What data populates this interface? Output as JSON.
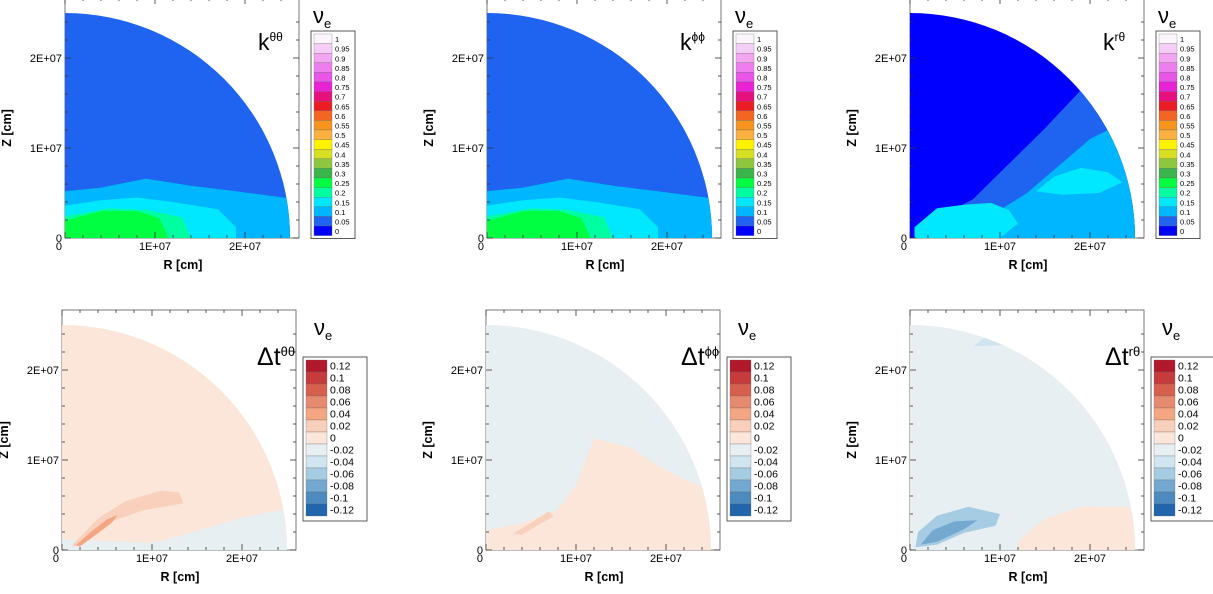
{
  "chart_data": [
    {
      "type": "heatmap",
      "quantity": "k",
      "superscript": "θθ",
      "particle_main": "ν",
      "particle_sub": "e",
      "xlabel": "R [cm]",
      "ylabel": "Z [cm]",
      "x_ticks": [
        "0",
        "1E+07",
        "2E+07"
      ],
      "y_ticks": [
        "0",
        "1E+07",
        "2E+07"
      ],
      "x_tick_values": [
        0,
        10000000,
        20000000
      ],
      "y_tick_values": [
        0,
        10000000,
        20000000
      ],
      "xlim": [
        0,
        26000000
      ],
      "ylim": [
        0,
        26000000
      ],
      "domain_radius": 25000000,
      "colorbar_levels": [
        "1",
        "0.95",
        "0.9",
        "0.85",
        "0.8",
        "0.75",
        "0.7",
        "0.65",
        "0.6",
        "0.55",
        "0.5",
        "0.45",
        "0.4",
        "0.35",
        "0.3",
        "0.25",
        "0.2",
        "0.15",
        "0.1",
        "0.05",
        "0"
      ],
      "colorbar_colors": [
        "#fdf5fd",
        "#f6cdf6",
        "#f2a6f2",
        "#ee7eee",
        "#ea55ea",
        "#ea22d6",
        "#e8107e",
        "#ed1c24",
        "#f26522",
        "#f7941d",
        "#fbb040",
        "#fff200",
        "#d7df23",
        "#8dc63f",
        "#39b54a",
        "#00ff40",
        "#00ffa0",
        "#00e8ff",
        "#00b6ff",
        "#1e64f0",
        "#0000ff"
      ],
      "regions": [
        {
          "level": "0.05",
          "color": "#1e64f0"
        },
        {
          "level": "0.1",
          "color": "#00b6ff"
        },
        {
          "level": "0.15",
          "color": "#00e8ff"
        },
        {
          "level": "0.2",
          "color": "#00ffa0"
        },
        {
          "level": "0.25",
          "color": "#00ff40"
        }
      ]
    },
    {
      "type": "heatmap",
      "quantity": "k",
      "superscript": "ϕϕ",
      "particle_main": "ν",
      "particle_sub": "e",
      "xlabel": "R [cm]",
      "ylabel": "Z [cm]",
      "x_ticks": [
        "0",
        "1E+07",
        "2E+07"
      ],
      "y_ticks": [
        "0",
        "1E+07",
        "2E+07"
      ],
      "x_tick_values": [
        0,
        10000000,
        20000000
      ],
      "y_tick_values": [
        0,
        10000000,
        20000000
      ],
      "xlim": [
        0,
        26000000
      ],
      "ylim": [
        0,
        26000000
      ],
      "domain_radius": 25000000,
      "colorbar_levels": [
        "1",
        "0.95",
        "0.9",
        "0.85",
        "0.8",
        "0.75",
        "0.7",
        "0.65",
        "0.6",
        "0.55",
        "0.5",
        "0.45",
        "0.4",
        "0.35",
        "0.3",
        "0.25",
        "0.2",
        "0.15",
        "0.1",
        "0.05",
        "0"
      ],
      "colorbar_colors": [
        "#fdf5fd",
        "#f6cdf6",
        "#f2a6f2",
        "#ee7eee",
        "#ea55ea",
        "#ea22d6",
        "#e8107e",
        "#ed1c24",
        "#f26522",
        "#f7941d",
        "#fbb040",
        "#fff200",
        "#d7df23",
        "#8dc63f",
        "#39b54a",
        "#00ff40",
        "#00ffa0",
        "#00e8ff",
        "#00b6ff",
        "#1e64f0",
        "#0000ff"
      ],
      "regions": [
        {
          "level": "0.05",
          "color": "#1e64f0"
        },
        {
          "level": "0.1",
          "color": "#00b6ff"
        },
        {
          "level": "0.15",
          "color": "#00e8ff"
        },
        {
          "level": "0.2",
          "color": "#00ffa0"
        },
        {
          "level": "0.25",
          "color": "#00ff40"
        }
      ]
    },
    {
      "type": "heatmap",
      "quantity": "k",
      "superscript": "rθ",
      "particle_main": "ν",
      "particle_sub": "e",
      "xlabel": "R [cm]",
      "ylabel": "Z [cm]",
      "x_ticks": [
        "0",
        "1E+07",
        "2E+07"
      ],
      "y_ticks": [
        "0",
        "1E+07",
        "2E+07"
      ],
      "x_tick_values": [
        0,
        10000000,
        20000000
      ],
      "y_tick_values": [
        0,
        10000000,
        20000000
      ],
      "xlim": [
        0,
        26000000
      ],
      "ylim": [
        0,
        26000000
      ],
      "domain_radius": 25000000,
      "colorbar_levels": [
        "1",
        "0.95",
        "0.9",
        "0.85",
        "0.8",
        "0.75",
        "0.7",
        "0.65",
        "0.6",
        "0.55",
        "0.5",
        "0.45",
        "0.4",
        "0.35",
        "0.3",
        "0.25",
        "0.2",
        "0.15",
        "0.1",
        "0.05",
        "0"
      ],
      "colorbar_colors": [
        "#fdf5fd",
        "#f6cdf6",
        "#f2a6f2",
        "#ee7eee",
        "#ea55ea",
        "#ea22d6",
        "#e8107e",
        "#ed1c24",
        "#f26522",
        "#f7941d",
        "#fbb040",
        "#fff200",
        "#d7df23",
        "#8dc63f",
        "#39b54a",
        "#00ff40",
        "#00ffa0",
        "#00e8ff",
        "#00b6ff",
        "#1e64f0",
        "#0000ff"
      ],
      "regions": [
        {
          "level": "0",
          "color": "#0000ff"
        },
        {
          "level": "0.05",
          "color": "#1e64f0"
        },
        {
          "level": "0.1",
          "color": "#00b6ff"
        },
        {
          "level": "0.15",
          "color": "#00e8ff"
        }
      ]
    },
    {
      "type": "heatmap",
      "quantity": "Δt",
      "superscript": "θθ",
      "particle_main": "ν",
      "particle_sub": "e",
      "xlabel": "R [cm]",
      "ylabel": "Z [cm]",
      "x_ticks": [
        "0",
        "1E+07",
        "2E+07"
      ],
      "y_ticks": [
        "0",
        "1E+07",
        "2E+07"
      ],
      "x_tick_values": [
        0,
        10000000,
        20000000
      ],
      "y_tick_values": [
        0,
        10000000,
        20000000
      ],
      "xlim": [
        0,
        26000000
      ],
      "ylim": [
        0,
        26000000
      ],
      "domain_radius": 25000000,
      "colorbar_levels": [
        "0.12",
        "0.1",
        "0.08",
        "0.06",
        "0.04",
        "0.02",
        "0",
        "-0.02",
        "-0.04",
        "-0.06",
        "-0.08",
        "-0.1",
        "-0.12"
      ],
      "colorbar_colors": [
        "#b2182b",
        "#c73b3a",
        "#d6604d",
        "#e58a6f",
        "#f4a582",
        "#f9d0bb",
        "#fbe6d9",
        "#e8eff2",
        "#d1e5f0",
        "#a5cce3",
        "#74a9cf",
        "#4b8bbf",
        "#2166ac"
      ],
      "regions": [
        {
          "level": "0",
          "color": "#fbe6d9"
        },
        {
          "level": "-0.02",
          "color": "#e8eff2"
        },
        {
          "level": "0.02",
          "color": "#f9d0bb"
        },
        {
          "level": "0.04",
          "color": "#f4a582"
        }
      ]
    },
    {
      "type": "heatmap",
      "quantity": "Δt",
      "superscript": "ϕϕ",
      "particle_main": "ν",
      "particle_sub": "e",
      "xlabel": "R [cm]",
      "ylabel": "Z [cm]",
      "x_ticks": [
        "0",
        "1E+07",
        "2E+07"
      ],
      "y_ticks": [
        "0",
        "1E+07",
        "2E+07"
      ],
      "x_tick_values": [
        0,
        10000000,
        20000000
      ],
      "y_tick_values": [
        0,
        10000000,
        20000000
      ],
      "xlim": [
        0,
        26000000
      ],
      "ylim": [
        0,
        26000000
      ],
      "domain_radius": 25000000,
      "colorbar_levels": [
        "0.12",
        "0.1",
        "0.08",
        "0.06",
        "0.04",
        "0.02",
        "0",
        "-0.02",
        "-0.04",
        "-0.06",
        "-0.08",
        "-0.1",
        "-0.12"
      ],
      "colorbar_colors": [
        "#b2182b",
        "#c73b3a",
        "#d6604d",
        "#e58a6f",
        "#f4a582",
        "#f9d0bb",
        "#fbe6d9",
        "#e8eff2",
        "#d1e5f0",
        "#a5cce3",
        "#74a9cf",
        "#4b8bbf",
        "#2166ac"
      ],
      "regions": [
        {
          "level": "-0.02",
          "color": "#e8eff2"
        },
        {
          "level": "0",
          "color": "#fbe6d9"
        },
        {
          "level": "0.02",
          "color": "#f9d0bb"
        }
      ]
    },
    {
      "type": "heatmap",
      "quantity": "Δt",
      "superscript": "rθ",
      "particle_main": "ν",
      "particle_sub": "e",
      "xlabel": "R [cm]",
      "ylabel": "Z [cm]",
      "x_ticks": [
        "0",
        "1E+07",
        "2E+07"
      ],
      "y_ticks": [
        "0",
        "1E+07",
        "2E+07"
      ],
      "x_tick_values": [
        0,
        10000000,
        20000000
      ],
      "y_tick_values": [
        0,
        10000000,
        20000000
      ],
      "xlim": [
        0,
        26000000
      ],
      "ylim": [
        0,
        26000000
      ],
      "domain_radius": 25000000,
      "colorbar_levels": [
        "0.12",
        "0.1",
        "0.08",
        "0.06",
        "0.04",
        "0.02",
        "0",
        "-0.02",
        "-0.04",
        "-0.06",
        "-0.08",
        "-0.1",
        "-0.12"
      ],
      "colorbar_colors": [
        "#b2182b",
        "#c73b3a",
        "#d6604d",
        "#e58a6f",
        "#f4a582",
        "#f9d0bb",
        "#fbe6d9",
        "#e8eff2",
        "#d1e5f0",
        "#a5cce3",
        "#74a9cf",
        "#4b8bbf",
        "#2166ac"
      ],
      "regions": [
        {
          "level": "-0.02",
          "color": "#e8eff2"
        },
        {
          "level": "0",
          "color": "#fbe6d9"
        },
        {
          "level": "-0.04",
          "color": "#d1e5f0"
        },
        {
          "level": "-0.06",
          "color": "#a5cce3"
        },
        {
          "level": "-0.08",
          "color": "#74a9cf"
        }
      ]
    }
  ]
}
